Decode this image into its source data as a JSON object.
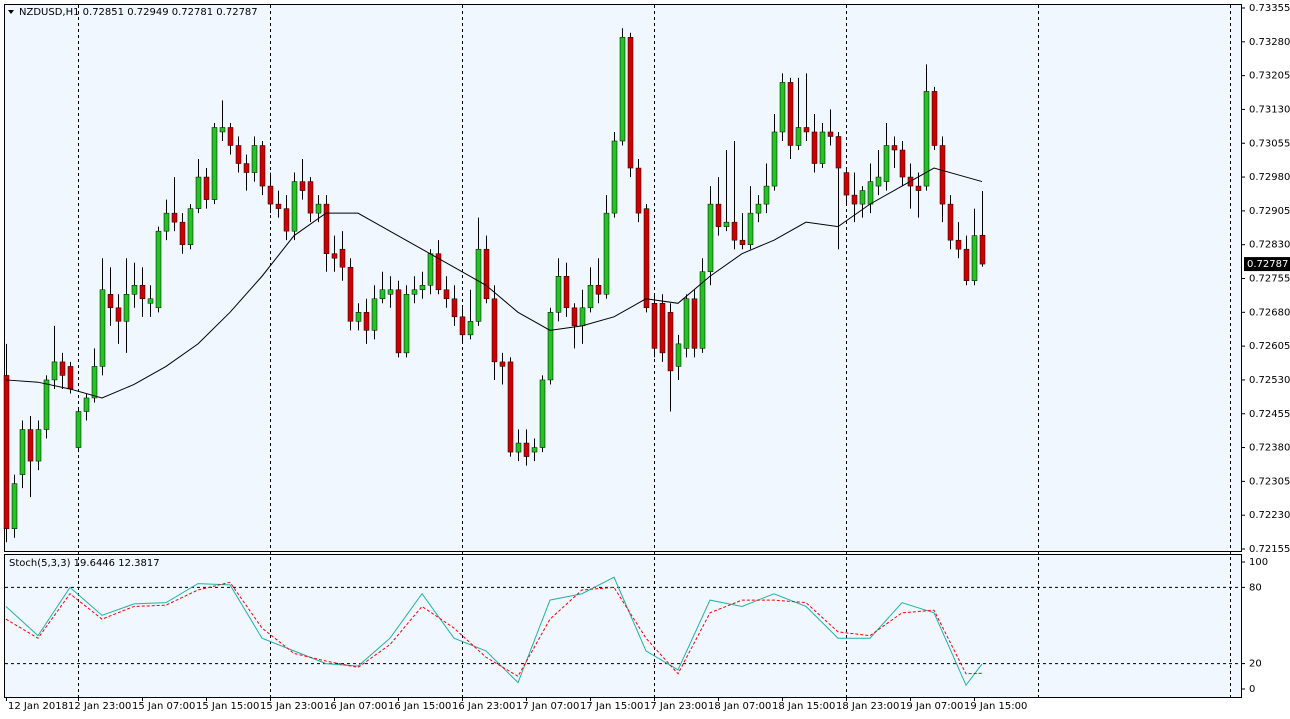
{
  "chart_data": [
    {
      "type": "candlestick",
      "title": "NZDUSD,H1",
      "up_color": "#22c322",
      "down_color": "#d00000",
      "categories": [
        "12 Jan 2018",
        null,
        null,
        null,
        null,
        null,
        null,
        null,
        null,
        "12 Jan 23:00",
        null,
        null,
        null,
        null,
        null,
        null,
        null,
        "15 Jan 07:00",
        null,
        null,
        null,
        null,
        null,
        null,
        null,
        "15 Jan 15:00",
        null,
        null,
        null,
        null,
        null,
        null,
        null,
        "15 Jan 23:00",
        null,
        null,
        null,
        null,
        null,
        null,
        null,
        "16 Jan 07:00",
        null,
        null,
        null,
        null,
        null,
        null,
        null,
        "16 Jan 15:00",
        null,
        null,
        null,
        null,
        null,
        null,
        null,
        "16 Jan 23:00",
        null,
        null,
        null,
        null,
        null,
        null,
        null,
        "17 Jan 07:00",
        null,
        null,
        null,
        null,
        null,
        null,
        null,
        "17 Jan 15:00",
        null,
        null,
        null,
        null,
        null,
        null,
        null,
        "17 Jan 23:00",
        null,
        null,
        null,
        null,
        null,
        null,
        null,
        "18 Jan 07:00",
        null,
        null,
        null,
        null,
        null,
        null,
        null,
        "18 Jan 15:00",
        null,
        null,
        null,
        null,
        null,
        null,
        null,
        "18 Jan 23:00",
        null,
        null,
        null,
        null,
        null,
        null,
        null,
        "19 Jan 07:00",
        null,
        null,
        null,
        null,
        null,
        null,
        null,
        "19 Jan 15:00",
        null
      ],
      "open": [
        0.7254,
        0.722,
        0.7232,
        0.7242,
        0.7235,
        0.7242,
        0.7253,
        0.7257,
        0.7256,
        0.7238,
        0.7246,
        0.7249,
        0.7256,
        0.7272,
        0.7269,
        0.7266,
        0.7272,
        0.7274,
        0.727,
        0.7269,
        0.7286,
        0.729,
        0.7288,
        0.7283,
        0.7291,
        0.7298,
        0.7293,
        0.7308,
        0.7309,
        0.7305,
        0.7301,
        0.7299,
        0.7305,
        0.7296,
        0.7292,
        0.7291,
        0.7286,
        0.7297,
        0.7297,
        0.729,
        0.7292,
        0.7281,
        0.7282,
        0.7278,
        0.7266,
        0.7268,
        0.7264,
        0.7271,
        0.7272,
        0.7273,
        0.7259,
        0.7272,
        0.7273,
        0.7274,
        0.7281,
        0.7273,
        0.7271,
        0.7267,
        0.7263,
        0.7266,
        0.7282,
        0.7271,
        0.7257,
        0.7257,
        0.7237,
        0.7239,
        0.7237,
        0.7238,
        0.7253,
        0.7268,
        0.7276,
        0.7269,
        0.7265,
        0.7269,
        0.7274,
        0.7272,
        0.729,
        0.7306,
        0.7329,
        0.73,
        0.7291,
        0.727,
        0.727,
        0.7268,
        0.7256,
        0.726,
        0.7271,
        0.726,
        0.7277,
        0.7292,
        0.7287,
        0.7288,
        0.7284,
        0.7283,
        0.729,
        0.7292,
        0.7296,
        0.7308,
        0.7319,
        0.7305,
        0.7309,
        0.7308,
        0.7301,
        0.7308,
        0.7307,
        0.7299,
        0.7294,
        0.7292,
        0.7292,
        0.7296,
        0.7297,
        0.7305,
        0.7304,
        0.7298,
        0.7296,
        0.7296,
        0.7317,
        0.7305,
        0.7292,
        0.7284,
        0.7282,
        0.7275,
        0.72851
      ],
      "high": [
        0.7261,
        0.7232,
        0.7244,
        0.7245,
        0.7244,
        0.7254,
        0.7265,
        0.7259,
        0.7257,
        0.7247,
        0.725,
        0.726,
        0.728,
        0.7278,
        0.7272,
        0.728,
        0.7279,
        0.7278,
        0.7274,
        0.7287,
        0.7293,
        0.7298,
        0.729,
        0.7292,
        0.7302,
        0.73,
        0.731,
        0.7315,
        0.731,
        0.7307,
        0.7303,
        0.7307,
        0.7306,
        0.7299,
        0.7295,
        0.7294,
        0.7299,
        0.7302,
        0.7298,
        0.7294,
        0.7294,
        0.7285,
        0.7286,
        0.728,
        0.727,
        0.7271,
        0.7274,
        0.7277,
        0.7276,
        0.7275,
        0.7274,
        0.7276,
        0.7277,
        0.7282,
        0.7284,
        0.7276,
        0.7274,
        0.7269,
        0.7273,
        0.7289,
        0.7285,
        0.7274,
        0.7259,
        0.7258,
        0.7242,
        0.7242,
        0.724,
        0.7254,
        0.7269,
        0.728,
        0.7279,
        0.727,
        0.7273,
        0.7278,
        0.728,
        0.7294,
        0.7308,
        0.7331,
        0.733,
        0.7302,
        0.7292,
        0.7272,
        0.7272,
        0.727,
        0.7263,
        0.7272,
        0.7273,
        0.728,
        0.7296,
        0.7298,
        0.7304,
        0.7306,
        0.729,
        0.7296,
        0.7294,
        0.7301,
        0.7312,
        0.7321,
        0.732,
        0.732,
        0.7321,
        0.7312,
        0.731,
        0.7313,
        0.7308,
        0.73,
        0.7299,
        0.7296,
        0.7301,
        0.7304,
        0.731,
        0.7307,
        0.7306,
        0.7301,
        0.7299,
        0.7323,
        0.7318,
        0.7307,
        0.7294,
        0.7288,
        0.7285,
        0.7291,
        0.72949
      ],
      "low": [
        0.7217,
        0.7218,
        0.7229,
        0.7227,
        0.7233,
        0.724,
        0.7251,
        0.7251,
        0.725,
        0.7237,
        0.7244,
        0.7248,
        0.7254,
        0.7265,
        0.7261,
        0.7259,
        0.7269,
        0.7267,
        0.7267,
        0.7268,
        0.7284,
        0.7286,
        0.7281,
        0.7282,
        0.729,
        0.7291,
        0.7292,
        0.7306,
        0.7303,
        0.7299,
        0.7295,
        0.7297,
        0.7294,
        0.729,
        0.7289,
        0.7284,
        0.7284,
        0.7293,
        0.7288,
        0.7288,
        0.7277,
        0.7277,
        0.7275,
        0.7264,
        0.7264,
        0.7261,
        0.7262,
        0.727,
        0.7269,
        0.7258,
        0.7258,
        0.727,
        0.7271,
        0.7272,
        0.7272,
        0.7269,
        0.7265,
        0.7261,
        0.7262,
        0.7265,
        0.727,
        0.7253,
        0.7252,
        0.7236,
        0.7235,
        0.7234,
        0.7235,
        0.7237,
        0.7252,
        0.7266,
        0.7267,
        0.726,
        0.7261,
        0.7268,
        0.727,
        0.7271,
        0.7289,
        0.7305,
        0.7298,
        0.7288,
        0.7268,
        0.7258,
        0.7257,
        0.7246,
        0.7253,
        0.7258,
        0.7258,
        0.7259,
        0.7274,
        0.7285,
        0.7286,
        0.7282,
        0.7282,
        0.7282,
        0.7288,
        0.729,
        0.7295,
        0.7306,
        0.7302,
        0.7304,
        0.7306,
        0.7299,
        0.73,
        0.7305,
        0.7282,
        0.7292,
        0.7288,
        0.7289,
        0.729,
        0.7294,
        0.7295,
        0.73,
        0.7296,
        0.7291,
        0.7289,
        0.7295,
        0.7304,
        0.7288,
        0.7282,
        0.728,
        0.7274,
        0.7274,
        0.72781
      ],
      "close": [
        0.722,
        0.723,
        0.7242,
        0.7235,
        0.7242,
        0.7253,
        0.7257,
        0.7254,
        0.7251,
        0.7246,
        0.7249,
        0.7256,
        0.7273,
        0.7269,
        0.7266,
        0.7272,
        0.7274,
        0.7271,
        0.7271,
        0.7286,
        0.729,
        0.7288,
        0.7283,
        0.7291,
        0.7298,
        0.7293,
        0.7309,
        0.7309,
        0.7305,
        0.7301,
        0.7299,
        0.7305,
        0.7296,
        0.7292,
        0.7291,
        0.7286,
        0.7297,
        0.7295,
        0.729,
        0.7292,
        0.7281,
        0.728,
        0.7278,
        0.7266,
        0.7268,
        0.7264,
        0.7271,
        0.7273,
        0.7273,
        0.7259,
        0.7272,
        0.7273,
        0.7274,
        0.7281,
        0.7273,
        0.7271,
        0.7267,
        0.7263,
        0.7266,
        0.7282,
        0.7271,
        0.7257,
        0.7256,
        0.7237,
        0.7239,
        0.7236,
        0.7238,
        0.7253,
        0.7268,
        0.7276,
        0.7269,
        0.7265,
        0.7269,
        0.7274,
        0.7272,
        0.729,
        0.7306,
        0.7329,
        0.73,
        0.729,
        0.7269,
        0.726,
        0.7259,
        0.7255,
        0.7261,
        0.7271,
        0.726,
        0.7277,
        0.7292,
        0.7287,
        0.7288,
        0.7284,
        0.7283,
        0.729,
        0.7292,
        0.7296,
        0.7308,
        0.7319,
        0.7305,
        0.7309,
        0.7308,
        0.7301,
        0.7308,
        0.7307,
        0.73,
        0.7294,
        0.7292,
        0.7295,
        0.7297,
        0.7298,
        0.7305,
        0.7304,
        0.7298,
        0.7296,
        0.7295,
        0.7317,
        0.7305,
        0.7292,
        0.7284,
        0.7282,
        0.7275,
        0.7285,
        0.72787
      ],
      "ma": {
        "color": "#000000",
        "x": [
          0,
          4,
          8,
          12,
          16,
          20,
          24,
          28,
          32,
          36,
          40,
          44,
          48,
          52,
          56,
          60,
          64,
          68,
          72,
          76,
          80,
          84,
          88,
          92,
          96,
          100,
          104,
          108,
          112,
          116,
          120,
          122
        ],
        "values": [
          0.7253,
          0.72525,
          0.7251,
          0.7249,
          0.7252,
          0.7256,
          0.7261,
          0.7268,
          0.7276,
          0.7285,
          0.729,
          0.729,
          0.7286,
          0.7282,
          0.7278,
          0.7274,
          0.7268,
          0.7264,
          0.7265,
          0.7267,
          0.7271,
          0.727,
          0.7276,
          0.7281,
          0.7284,
          0.7288,
          0.7287,
          0.7292,
          0.7296,
          0.73,
          0.7298,
          0.7297
        ]
      },
      "ylim": [
        0.72155,
        0.73355
      ],
      "yticks": [
        0.73355,
        {
          "value": 0.7328,
          "label": "0.73280"
        },
        0.73205,
        {
          "value": 0.7313,
          "label": "0.73130"
        },
        0.73055,
        {
          "value": 0.7298,
          "label": "0.72980"
        },
        0.72905,
        {
          "value": 0.7283,
          "label": "0.72830"
        },
        0.72755,
        {
          "value": 0.7268,
          "label": "0.72680"
        },
        0.72605,
        {
          "value": 0.7253,
          "label": "0.72530"
        },
        0.72455,
        {
          "value": 0.7238,
          "label": "0.72380"
        },
        0.72305,
        {
          "value": 0.7223,
          "label": "0.72230"
        },
        0.72155
      ]
    },
    {
      "type": "line",
      "title": "Stoch(5,3,3)",
      "x": [
        0,
        4,
        8,
        12,
        16,
        20,
        24,
        28,
        32,
        36,
        40,
        44,
        48,
        52,
        56,
        60,
        64,
        68,
        72,
        76,
        80,
        84,
        88,
        92,
        96,
        100,
        104,
        108,
        112,
        116,
        120,
        122
      ],
      "series": [
        {
          "color": "#20b2aa",
          "values": [
            65,
            42,
            80,
            58,
            67,
            68,
            83,
            82,
            40,
            30,
            20,
            18,
            40,
            75,
            40,
            30,
            5,
            70,
            75,
            88,
            30,
            15,
            70,
            65,
            75,
            65,
            40,
            40,
            68,
            60,
            3,
            19.6446
          ]
        },
        {
          "color": "#ff0000",
          "dashed": true,
          "values": [
            55,
            40,
            75,
            55,
            65,
            66,
            78,
            84,
            48,
            28,
            22,
            17,
            35,
            65,
            48,
            25,
            10,
            55,
            78,
            80,
            40,
            12,
            60,
            70,
            70,
            68,
            45,
            42,
            60,
            62,
            12,
            12.3817
          ]
        }
      ],
      "ylim": [
        0,
        100
      ],
      "yticks": [
        100,
        80,
        20,
        0
      ],
      "level_lines": true
    }
  ]
}
